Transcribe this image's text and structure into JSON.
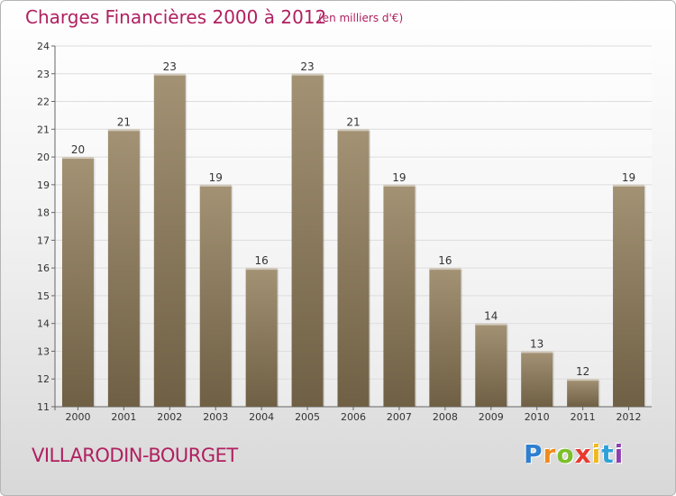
{
  "title": "Charges Financières 2000 à 2012",
  "subtitle": "(en milliers d'€)",
  "commune": "VILLARODIN-BOURGET",
  "logo_text": "Proxiti",
  "colors": {
    "bar_top": "#a39274",
    "bar_bottom": "#6f5f44",
    "title": "#b02060",
    "grid": "#dddddd"
  },
  "chart_data": {
    "type": "bar",
    "categories": [
      "2000",
      "2001",
      "2002",
      "2003",
      "2004",
      "2005",
      "2006",
      "2007",
      "2008",
      "2009",
      "2010",
      "2011",
      "2012"
    ],
    "values": [
      20,
      21,
      23,
      19,
      16,
      23,
      21,
      19,
      16,
      14,
      13,
      12,
      19
    ],
    "ylim": [
      11,
      24
    ],
    "yticks": [
      11,
      12,
      13,
      14,
      15,
      16,
      17,
      18,
      19,
      20,
      21,
      22,
      23,
      24
    ],
    "grid": true,
    "title": "Charges Financières 2000 à 2012",
    "xlabel": "",
    "ylabel": ""
  }
}
